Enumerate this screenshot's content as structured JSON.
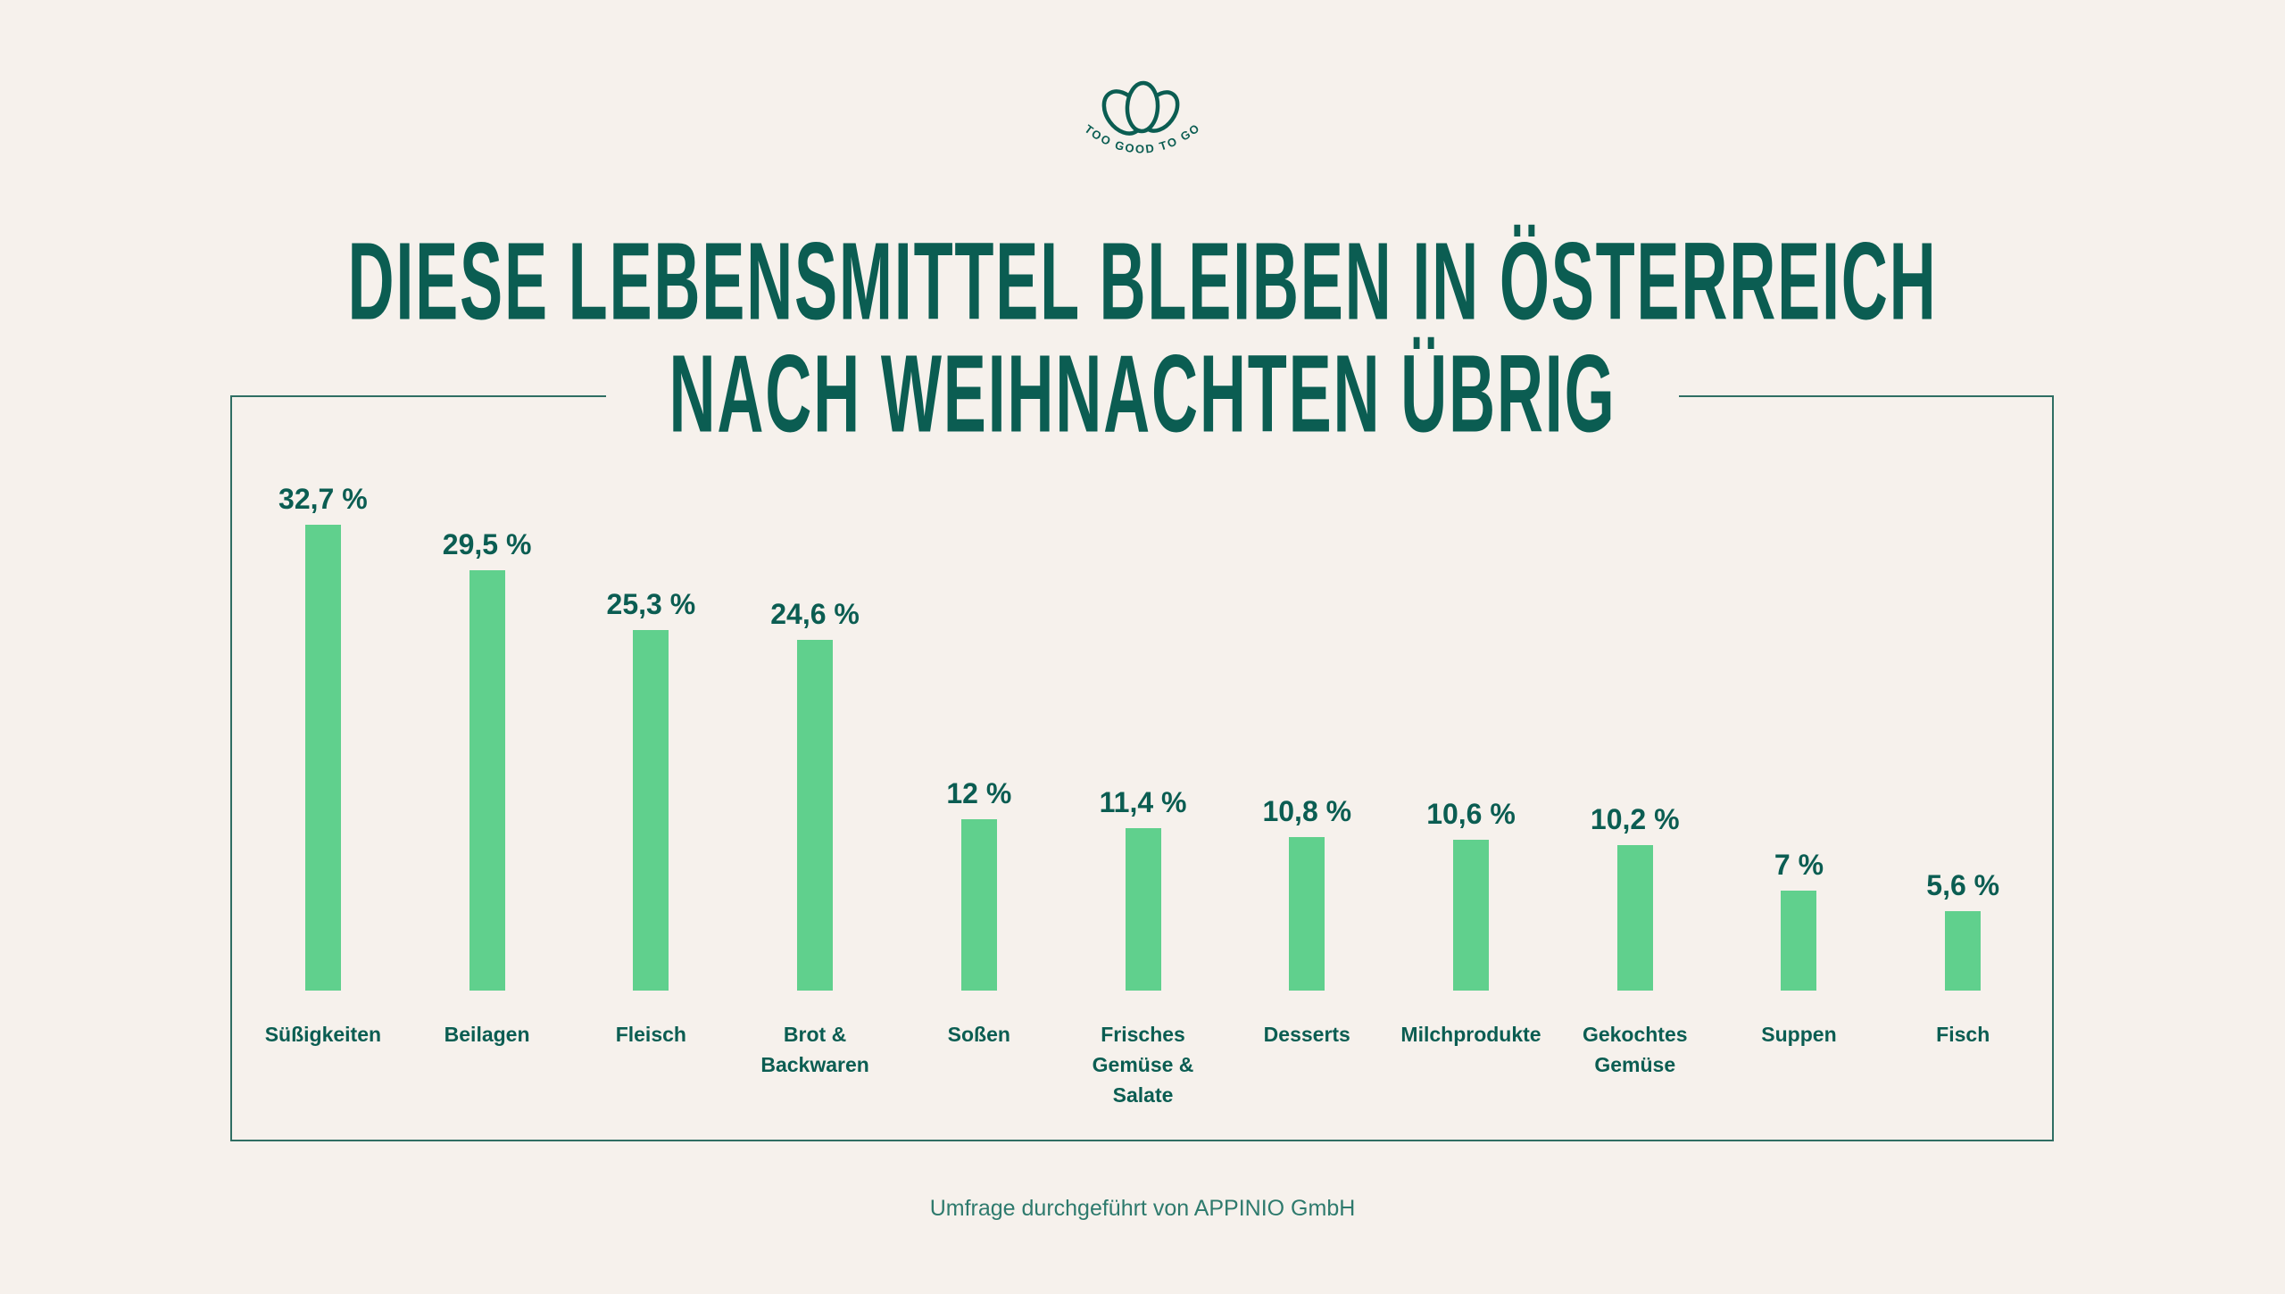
{
  "brand": {
    "logo_text": "TOO GOOD TO GO",
    "colors": {
      "teal": "#0b5d52",
      "teal_light": "#2e7a6d",
      "box_border": "#2f6e63",
      "bar_green": "#60d08d",
      "background": "#f6f1ec"
    }
  },
  "title": {
    "line1": "DIESE LEBENSMITTEL BLEIBEN IN ÖSTERREICH",
    "line2": "NACH WEIHNACHTEN ÜBRIG"
  },
  "footer": {
    "text": "Umfrage durchgeführt von APPINIO GmbH"
  },
  "chart_data": {
    "type": "bar",
    "title": "Diese Lebensmittel bleiben in Österreich nach Weihnachten übrig",
    "categories": [
      "Süßigkeiten",
      "Beilagen",
      "Fleisch",
      "Brot & Backwaren",
      "Soßen",
      "Frisches Gemüse & Salate",
      "Desserts",
      "Milchprodukte",
      "Gekochtes Gemüse",
      "Suppen",
      "Fisch"
    ],
    "category_labels": [
      "Süßigkeiten",
      "Beilagen",
      "Fleisch",
      "Brot &\nBackwaren",
      "Soßen",
      "Frisches\nGemüse & Salate",
      "Desserts",
      "Milchprodukte",
      "Gekochtes\nGemüse",
      "Suppen",
      "Fisch"
    ],
    "values": [
      32.7,
      29.5,
      25.3,
      24.6,
      12,
      11.4,
      10.8,
      10.6,
      10.2,
      7,
      5.6
    ],
    "value_labels": [
      "32,7 %",
      "29,5 %",
      "25,3 %",
      "24,6 %",
      "12 %",
      "11,4 %",
      "10,8 %",
      "10,6 %",
      "10,2 %",
      "7 %",
      "5,6 %"
    ],
    "unit": "%",
    "ylim": [
      0,
      32.7
    ],
    "xlabel": "",
    "ylabel": "",
    "grid": false,
    "legend": false,
    "bar_color": "#60d08d",
    "label_color": "#0b5d52"
  }
}
